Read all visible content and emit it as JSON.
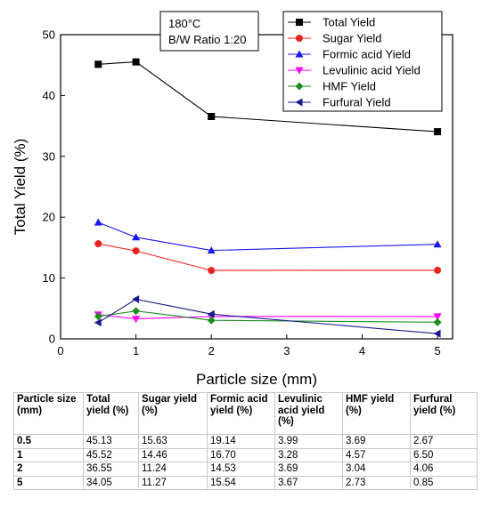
{
  "chart_data": {
    "type": "line",
    "xlabel": "Particle size (mm)",
    "ylabel": "Total Yield (%)",
    "xlim": [
      0,
      5.2
    ],
    "ylim": [
      0,
      50
    ],
    "xticks": [
      0,
      1,
      2,
      3,
      4,
      5
    ],
    "yticks": [
      0,
      10,
      20,
      30,
      40,
      50
    ],
    "annotation": [
      "180°C",
      "B/W Ratio 1:20"
    ],
    "legend_position": "top-right",
    "x": [
      0.5,
      1,
      2,
      5
    ],
    "series": [
      {
        "name": "Total Yield",
        "values": [
          45.13,
          45.52,
          36.55,
          34.05
        ],
        "color": "#000000",
        "marker": "square"
      },
      {
        "name": "Sugar Yield",
        "values": [
          15.63,
          14.46,
          11.24,
          11.27
        ],
        "color": "#e8231f",
        "marker": "circle"
      },
      {
        "name": "Formic acid Yield",
        "values": [
          19.14,
          16.7,
          14.53,
          15.54
        ],
        "color": "#1a1ae6",
        "marker": "triangle-up"
      },
      {
        "name": "Levulinic acid Yield",
        "values": [
          3.99,
          3.28,
          3.69,
          3.67
        ],
        "color": "#ff00ff",
        "marker": "triangle-down"
      },
      {
        "name": "HMF Yield",
        "values": [
          3.69,
          4.57,
          3.04,
          2.73
        ],
        "color": "#1e8c1e",
        "marker": "diamond"
      },
      {
        "name": "Furfural Yield",
        "values": [
          2.67,
          6.5,
          4.06,
          0.85
        ],
        "color": "#1a1a8c",
        "marker": "triangle-left"
      }
    ]
  },
  "table": {
    "headers": [
      "Particle size (mm)",
      "Total yield (%)",
      "Sugar yield (%)",
      "Formic acid yield (%)",
      "Levulinic acid yield (%)",
      "HMF yield (%)",
      "Furfural yield (%)"
    ],
    "rows": [
      [
        "0.5",
        "45.13",
        "15.63",
        "19.14",
        "3.99",
        "3.69",
        "2.67"
      ],
      [
        "1",
        "45.52",
        "14.46",
        "16.70",
        "3.28",
        "4.57",
        "6.50"
      ],
      [
        "2",
        "36.55",
        "11.24",
        "14.53",
        "3.69",
        "3.04",
        "4.06"
      ],
      [
        "5",
        "34.05",
        "11.27",
        "15.54",
        "3.67",
        "2.73",
        "0.85"
      ]
    ]
  }
}
